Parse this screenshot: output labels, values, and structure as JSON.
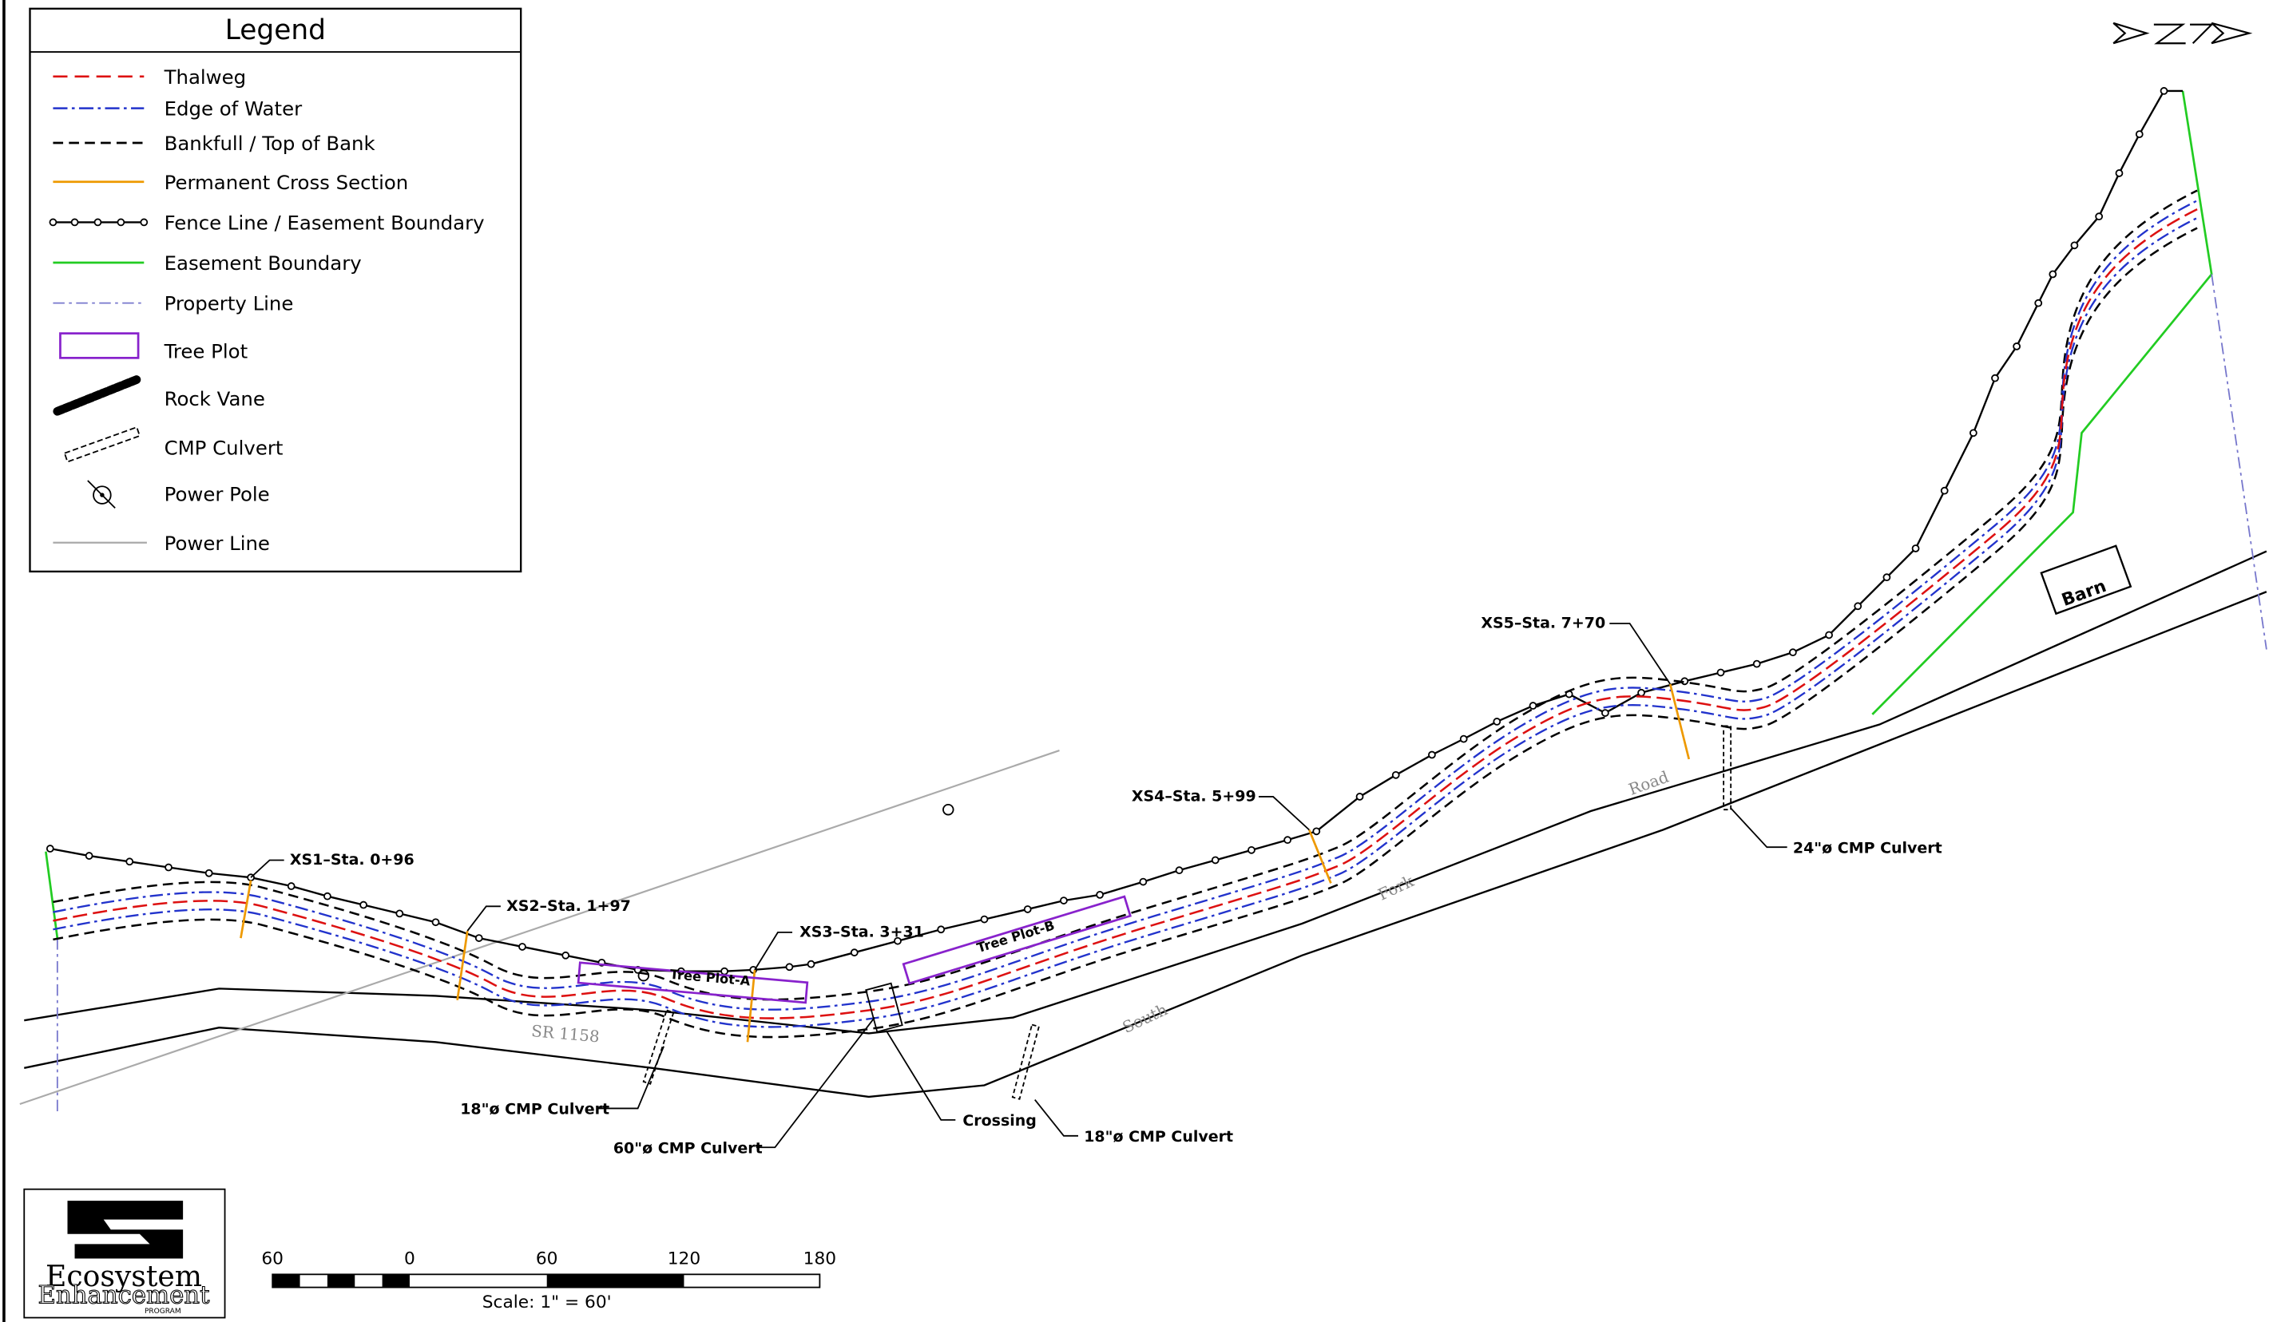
{
  "legend": {
    "title": "Legend",
    "items": [
      "Thalweg",
      "Edge of Water",
      "Bankfull / Top of Bank",
      "Permanent Cross Section",
      "Fence Line / Easement Boundary",
      "Easement Boundary",
      "Property Line",
      "Tree Plot",
      "Rock Vane",
      "CMP Culvert",
      "Power Pole",
      "Power Line"
    ]
  },
  "cross_sections": [
    "XS1–Sta. 0+96",
    "XS2–Sta. 1+97",
    "XS3–Sta. 3+31",
    "XS4–Sta. 5+99",
    "XS5–Sta. 7+70"
  ],
  "labels": {
    "tree_plots": [
      "Tree Plot-A",
      "Tree Plot-B"
    ],
    "culverts": [
      "18\"ø CMP Culvert",
      "60\"ø CMP Culvert",
      "18\"ø CMP Culvert",
      "24\"ø CMP Culvert"
    ],
    "crossing": "Crossing",
    "barn": "Barn",
    "roads": [
      "SR 1158",
      "South",
      "Fork",
      "Road"
    ]
  },
  "scale_bar": {
    "ticks": [
      "60",
      "0",
      "60",
      "120",
      "180"
    ],
    "caption": "Scale: 1\" = 60'"
  },
  "logo": {
    "line1": "Ecosystem",
    "line2": "Enhancement",
    "line3": "PROGRAM"
  }
}
